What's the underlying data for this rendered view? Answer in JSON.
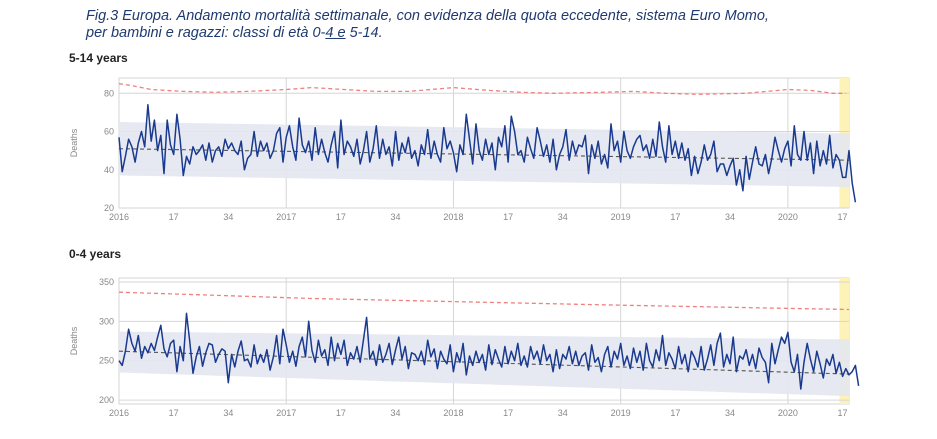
{
  "figure": {
    "caption_part1": "Fig.3 Europa. Andamento mortalità settimanale, con evidenza della quota eccedente, sistema Euro Momo,",
    "caption_part2_prefix": "per bambini e ragazzi: classi di età 0-",
    "caption_part2_underlined": "4  e",
    "caption_part2_suffix": " 5-14."
  },
  "colors": {
    "observed": "#1a3a8f",
    "baseline": "#555555",
    "threshold": "#f08080",
    "band": "#e3e7ef",
    "highlight": "#fdf3b8",
    "grid": "#d6d6d6"
  },
  "chart_data": [
    {
      "type": "line",
      "title": "5-14 years",
      "ylabel": "Deaths",
      "xlabel": "",
      "ylim": [
        20,
        88
      ],
      "yticks": [
        20,
        40,
        60,
        80
      ],
      "xlim": [
        0,
        227
      ],
      "xticks": [
        {
          "pos": 0,
          "label": "2016"
        },
        {
          "pos": 17,
          "label": "17"
        },
        {
          "pos": 34,
          "label": "34"
        },
        {
          "pos": 52,
          "label": "2017"
        },
        {
          "pos": 69,
          "label": "17"
        },
        {
          "pos": 86,
          "label": "34"
        },
        {
          "pos": 104,
          "label": "2018"
        },
        {
          "pos": 121,
          "label": "17"
        },
        {
          "pos": 138,
          "label": "34"
        },
        {
          "pos": 156,
          "label": "2019"
        },
        {
          "pos": 173,
          "label": "17"
        },
        {
          "pos": 190,
          "label": "34"
        },
        {
          "pos": 208,
          "label": "2020"
        },
        {
          "pos": 225,
          "label": "17"
        }
      ],
      "highlight_range": [
        224,
        227
      ],
      "baseline": [
        [
          0,
          51
        ],
        [
          227,
          45
        ]
      ],
      "band": {
        "upper": [
          [
            0,
            65
          ],
          [
            227,
            59
          ]
        ],
        "lower": [
          [
            0,
            37
          ],
          [
            227,
            31
          ]
        ]
      },
      "threshold": [
        [
          0,
          85
        ],
        [
          4,
          84
        ],
        [
          10,
          82
        ],
        [
          20,
          81
        ],
        [
          30,
          80.5
        ],
        [
          40,
          81
        ],
        [
          52,
          82
        ],
        [
          60,
          83
        ],
        [
          70,
          82
        ],
        [
          80,
          81
        ],
        [
          90,
          81
        ],
        [
          104,
          83
        ],
        [
          115,
          81.5
        ],
        [
          125,
          80.5
        ],
        [
          135,
          80
        ],
        [
          150,
          80.5
        ],
        [
          160,
          81
        ],
        [
          170,
          80
        ],
        [
          180,
          79.5
        ],
        [
          195,
          80
        ],
        [
          208,
          82
        ],
        [
          215,
          81.5
        ],
        [
          222,
          80
        ],
        [
          226,
          80
        ]
      ],
      "series": [
        {
          "values": [
            57,
            39,
            47,
            56,
            52,
            44,
            54,
            60,
            52,
            74,
            55,
            66,
            50,
            58,
            38,
            66,
            53,
            48,
            69,
            56,
            37,
            47,
            43,
            52,
            48,
            50,
            53,
            45,
            54,
            44,
            50,
            52,
            47,
            56,
            51,
            54,
            50,
            48,
            55,
            40,
            46,
            48,
            60,
            47,
            55,
            50,
            54,
            46,
            50,
            59,
            62,
            44,
            57,
            63,
            52,
            45,
            67,
            53,
            49,
            55,
            45,
            62,
            48,
            56,
            49,
            44,
            53,
            60,
            41,
            66,
            48,
            55,
            52,
            47,
            56,
            43,
            50,
            60,
            44,
            51,
            63,
            46,
            56,
            48,
            52,
            42,
            60,
            45,
            54,
            49,
            57,
            46,
            50,
            42,
            53,
            48,
            61,
            46,
            55,
            48,
            44,
            62,
            51,
            55,
            49,
            39,
            53,
            48,
            69,
            56,
            43,
            64,
            50,
            45,
            56,
            48,
            54,
            40,
            57,
            52,
            63,
            44,
            68,
            60,
            48,
            50,
            44,
            57,
            51,
            46,
            62,
            55,
            47,
            53,
            44,
            56,
            40,
            48,
            52,
            61,
            45,
            55,
            48,
            53,
            52,
            58,
            38,
            53,
            46,
            55,
            43,
            48,
            41,
            64,
            50,
            55,
            44,
            60,
            50,
            46,
            52,
            56,
            58,
            50,
            53,
            46,
            56,
            47,
            65,
            52,
            44,
            63,
            48,
            55,
            46,
            54,
            45,
            51,
            37,
            47,
            38,
            44,
            53,
            45,
            48,
            55,
            39,
            43,
            43,
            37,
            42,
            46,
            32,
            40,
            29,
            47,
            35,
            44,
            52,
            43,
            42,
            48,
            38,
            46,
            57,
            50,
            44,
            51,
            55,
            42,
            63,
            48,
            45,
            60,
            45,
            54,
            38,
            55,
            42,
            50,
            43,
            58,
            41,
            48,
            45,
            36,
            36,
            50,
            33,
            23
          ]
        }
      ]
    },
    {
      "type": "line",
      "title": "0-4 years",
      "ylabel": "Deaths",
      "xlabel": "",
      "ylim": [
        195,
        355
      ],
      "yticks": [
        200,
        250,
        300,
        350
      ],
      "xlim": [
        0,
        227
      ],
      "xticks": [
        {
          "pos": 0,
          "label": "2016"
        },
        {
          "pos": 17,
          "label": "17"
        },
        {
          "pos": 34,
          "label": "34"
        },
        {
          "pos": 52,
          "label": "2017"
        },
        {
          "pos": 69,
          "label": "17"
        },
        {
          "pos": 86,
          "label": "34"
        },
        {
          "pos": 104,
          "label": "2018"
        },
        {
          "pos": 121,
          "label": "17"
        },
        {
          "pos": 138,
          "label": "34"
        },
        {
          "pos": 156,
          "label": "2019"
        },
        {
          "pos": 173,
          "label": "17"
        },
        {
          "pos": 190,
          "label": "34"
        },
        {
          "pos": 208,
          "label": "2020"
        },
        {
          "pos": 225,
          "label": "17"
        }
      ],
      "highlight_range": [
        224,
        227
      ],
      "baseline": [
        [
          0,
          262
        ],
        [
          227,
          233
        ]
      ],
      "band": {
        "upper": [
          [
            0,
            287
          ],
          [
            227,
            277
          ]
        ],
        "lower": [
          [
            0,
            235
          ],
          [
            227,
            205
          ]
        ]
      },
      "threshold": [
        [
          0,
          337
        ],
        [
          30,
          333
        ],
        [
          60,
          329
        ],
        [
          104,
          325
        ],
        [
          150,
          321
        ],
        [
          200,
          317
        ],
        [
          227,
          315
        ]
      ],
      "series": [
        {
          "values": [
            250,
            244,
            262,
            290,
            272,
            262,
            282,
            253,
            268,
            260,
            272,
            263,
            280,
            295,
            265,
            255,
            272,
            276,
            236,
            268,
            250,
            310,
            275,
            234,
            255,
            268,
            243,
            260,
            272,
            270,
            248,
            258,
            265,
            262,
            222,
            258,
            242,
            262,
            275,
            250,
            252,
            242,
            270,
            246,
            258,
            248,
            264,
            238,
            255,
            282,
            246,
            290,
            270,
            248,
            262,
            243,
            268,
            280,
            255,
            300,
            263,
            248,
            276,
            256,
            264,
            244,
            280,
            250,
            272,
            258,
            276,
            244,
            260,
            252,
            268,
            248,
            276,
            305,
            252,
            262,
            244,
            270,
            248,
            258,
            272,
            245,
            264,
            280,
            252,
            268,
            240,
            260,
            258,
            250,
            262,
            245,
            276,
            255,
            265,
            240,
            262,
            252,
            246,
            270,
            236,
            260,
            248,
            272,
            232,
            256,
            244,
            262,
            248,
            258,
            238,
            270,
            245,
            264,
            252,
            242,
            268,
            246,
            262,
            250,
            272,
            244,
            256,
            242,
            268,
            252,
            262,
            246,
            270,
            250,
            258,
            236,
            264,
            240,
            258,
            252,
            268,
            246,
            262,
            244,
            256,
            260,
            238,
            270,
            248,
            254,
            236,
            258,
            268,
            242,
            262,
            252,
            272,
            244,
            256,
            240,
            266,
            248,
            262,
            238,
            272,
            250,
            242,
            264,
            250,
            282,
            244,
            260,
            252,
            240,
            268,
            246,
            258,
            236,
            262,
            254,
            242,
            268,
            238,
            252,
            270,
            244,
            272,
            285,
            242,
            258,
            246,
            280,
            236,
            256,
            252,
            264,
            244,
            258,
            240,
            266,
            254,
            248,
            222,
            272,
            246,
            264,
            280,
            272,
            286,
            248,
            236,
            258,
            214,
            248,
            272,
            252,
            236,
            262,
            246,
            228,
            252,
            244,
            258,
            234,
            248,
            230,
            240,
            232,
            236,
            244,
            218
          ]
        }
      ]
    }
  ]
}
